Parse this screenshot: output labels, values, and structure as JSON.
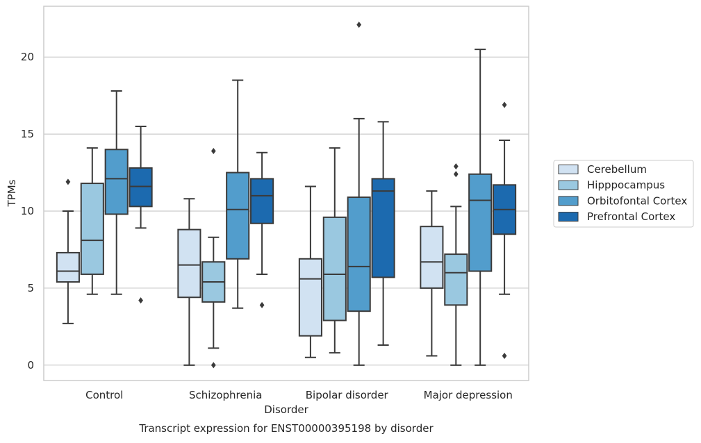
{
  "chart_data": {
    "type": "box",
    "xlabel": "Disorder",
    "ylabel": "TPMs",
    "caption": "Transcript expression for ENST00000395198 by disorder",
    "ylim": [
      -1,
      23.3
    ],
    "yticks": [
      0,
      5,
      10,
      15,
      20
    ],
    "grid": "horizontal",
    "legend_position": "right",
    "categories": [
      "Control",
      "Schizophrenia",
      "Bipolar disorder",
      "Major depression"
    ],
    "series": [
      {
        "name": "Cerebellum",
        "color": "#d1e2f2",
        "boxes": [
          {
            "whislo": 2.7,
            "q1": 5.4,
            "med": 6.1,
            "q3": 7.3,
            "whishi": 10.0,
            "fliers": [
              11.9
            ]
          },
          {
            "whislo": 0.0,
            "q1": 4.4,
            "med": 6.5,
            "q3": 8.8,
            "whishi": 10.8,
            "fliers": []
          },
          {
            "whislo": 0.5,
            "q1": 1.9,
            "med": 5.6,
            "q3": 6.9,
            "whishi": 11.6,
            "fliers": []
          },
          {
            "whislo": 0.6,
            "q1": 5.0,
            "med": 6.7,
            "q3": 9.0,
            "whishi": 11.3,
            "fliers": []
          }
        ]
      },
      {
        "name": "Hipppocampus",
        "color": "#9ac8e0",
        "boxes": [
          {
            "whislo": 4.6,
            "q1": 5.9,
            "med": 8.1,
            "q3": 11.8,
            "whishi": 14.1,
            "fliers": []
          },
          {
            "whislo": 1.1,
            "q1": 4.1,
            "med": 5.4,
            "q3": 6.7,
            "whishi": 8.3,
            "fliers": [
              13.9,
              0.0
            ]
          },
          {
            "whislo": 0.8,
            "q1": 2.9,
            "med": 5.9,
            "q3": 9.6,
            "whishi": 14.1,
            "fliers": []
          },
          {
            "whislo": 0.0,
            "q1": 3.9,
            "med": 6.0,
            "q3": 7.2,
            "whishi": 10.3,
            "fliers": [
              12.9,
              12.4
            ]
          }
        ]
      },
      {
        "name": "Orbitofontal Cortex",
        "color": "#529dcc",
        "boxes": [
          {
            "whislo": 4.6,
            "q1": 9.8,
            "med": 12.1,
            "q3": 14.0,
            "whishi": 17.8,
            "fliers": []
          },
          {
            "whislo": 3.7,
            "q1": 6.9,
            "med": 10.1,
            "q3": 12.5,
            "whishi": 18.5,
            "fliers": []
          },
          {
            "whislo": 0.0,
            "q1": 3.5,
            "med": 6.4,
            "q3": 10.9,
            "whishi": 16.0,
            "fliers": [
              22.1
            ]
          },
          {
            "whislo": 0.0,
            "q1": 6.1,
            "med": 10.7,
            "q3": 12.4,
            "whishi": 20.5,
            "fliers": []
          }
        ]
      },
      {
        "name": "Prefrontal Cortex",
        "color": "#1c6aaf",
        "boxes": [
          {
            "whislo": 8.9,
            "q1": 10.3,
            "med": 11.6,
            "q3": 12.8,
            "whishi": 15.5,
            "fliers": [
              4.2
            ]
          },
          {
            "whislo": 5.9,
            "q1": 9.2,
            "med": 11.0,
            "q3": 12.1,
            "whishi": 13.8,
            "fliers": [
              3.9
            ]
          },
          {
            "whislo": 1.3,
            "q1": 5.7,
            "med": 11.3,
            "q3": 12.1,
            "whishi": 15.8,
            "fliers": []
          },
          {
            "whislo": 4.6,
            "q1": 8.5,
            "med": 10.1,
            "q3": 11.7,
            "whishi": 14.6,
            "fliers": [
              16.9,
              0.6
            ]
          }
        ]
      }
    ]
  }
}
